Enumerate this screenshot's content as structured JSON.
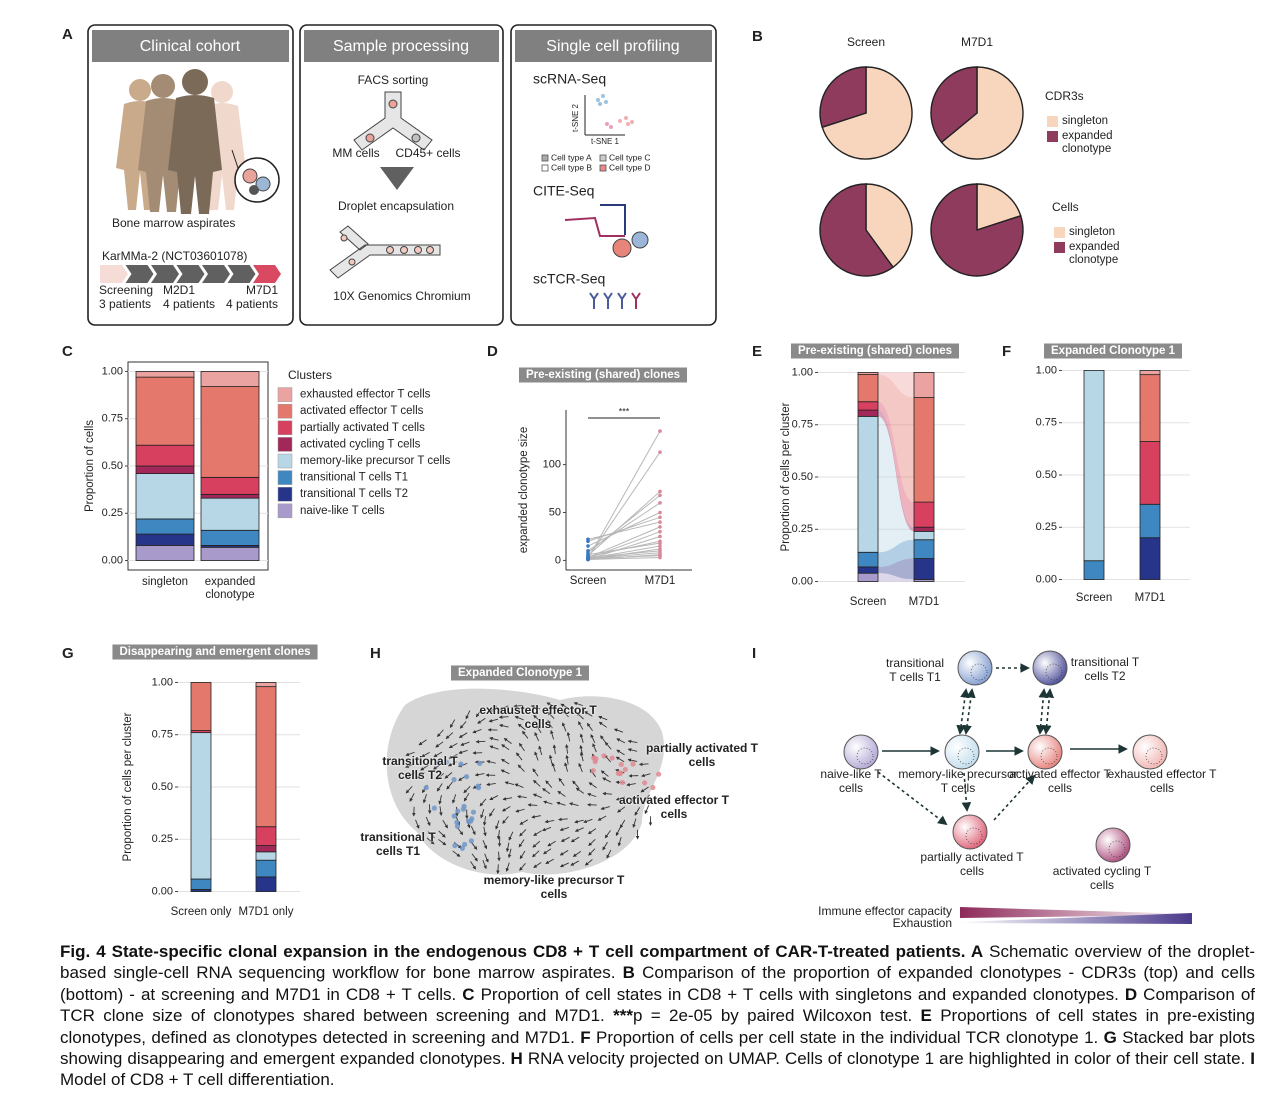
{
  "panel_labels": [
    "A",
    "B",
    "C",
    "D",
    "E",
    "F",
    "G",
    "H",
    "I"
  ],
  "panel_a": {
    "headers": [
      "Clinical cohort",
      "Sample processing",
      "Single cell profiling"
    ],
    "cohort": {
      "caption": "Bone marrow aspirates",
      "trial": "KarMMa-2 (NCT03601078)",
      "timepoints": [
        {
          "name": "Screening",
          "patients": "3 patients"
        },
        {
          "name": "M2D1",
          "patients": "4 patients"
        },
        {
          "name": "M7D1",
          "patients": "4 patients"
        }
      ]
    },
    "processing": {
      "step1": "FACS sorting",
      "left": "MM cells",
      "right": "CD45+ cells",
      "step2": "Droplet encapsulation",
      "step3": "10X Genomics Chromium"
    },
    "profiling": {
      "methods": [
        "scRNA-Seq",
        "CITE-Seq",
        "scTCR-Seq"
      ],
      "axis_y": "t-SNE 2",
      "axis_x": "t-SNE 1",
      "cell_types": [
        "Cell type A",
        "Cell type C",
        "Cell type B",
        "Cell type D"
      ]
    }
  },
  "chart_data": [
    {
      "type": "pie",
      "title": "CDR3s",
      "labels": [
        "singleton",
        "expanded clonotype"
      ],
      "colors": [
        "#f8d5bd",
        "#8e3b5e"
      ],
      "pies": [
        {
          "name": "Screen",
          "values": [
            70,
            30
          ]
        },
        {
          "name": "M7D1",
          "values": [
            64,
            36
          ]
        }
      ]
    },
    {
      "type": "pie",
      "title": "Cells",
      "labels": [
        "singleton",
        "expanded clonotype"
      ],
      "colors": [
        "#f8d5bd",
        "#8e3b5e"
      ],
      "pies": [
        {
          "values": [
            40,
            60
          ]
        },
        {
          "values": [
            20,
            80
          ]
        }
      ]
    },
    {
      "type": "bar",
      "stacked": true,
      "categories": [
        "singleton",
        "expanded clonotype"
      ],
      "y_label": "Proportion of cells",
      "legend_title": "Clusters",
      "series": [
        {
          "name": "exhausted effector T cells",
          "color": "#eaa3a0",
          "values": [
            0.03,
            0.08
          ]
        },
        {
          "name": "activated effector T cells",
          "color": "#e4786d",
          "values": [
            0.36,
            0.48
          ]
        },
        {
          "name": "partially activated T cells",
          "color": "#d8405f",
          "values": [
            0.11,
            0.09
          ]
        },
        {
          "name": "activated cycling T cells",
          "color": "#a3285a",
          "values": [
            0.04,
            0.02
          ]
        },
        {
          "name": "memory-like precursor T cells",
          "color": "#b8d7e6",
          "values": [
            0.24,
            0.17
          ]
        },
        {
          "name": "transitional T cells T1",
          "color": "#3f87c0",
          "values": [
            0.08,
            0.08
          ]
        },
        {
          "name": "transitional T cells T2",
          "color": "#26358a",
          "values": [
            0.06,
            0.01
          ]
        },
        {
          "name": "naive-like T cells",
          "color": "#a89bcb",
          "values": [
            0.08,
            0.07
          ]
        }
      ],
      "ylim": [
        -0.05,
        1.05
      ],
      "yticks": [
        {
          "value": 0,
          "label": "0.00"
        },
        0.25,
        {
          "value": 0.5,
          "label": "0.50"
        },
        0.75,
        {
          "value": 1,
          "label": "1.00"
        }
      ],
      "grid": true
    },
    {
      "type": "line",
      "title": "Pre-existing (shared) clones",
      "categories": [
        "Screen",
        "M7D1"
      ],
      "y_label": "expanded clonotype size",
      "annotation": "***",
      "line_color": "#b8b8b8",
      "point_colors": [
        "#3a78c2",
        "#d9889a"
      ],
      "series": [
        {
          "values": [
            2,
            135
          ]
        },
        {
          "values": [
            3,
            113
          ]
        },
        {
          "values": [
            5,
            72
          ]
        },
        {
          "values": [
            8,
            68
          ]
        },
        {
          "values": [
            10,
            60
          ]
        },
        {
          "values": [
            15,
            50
          ]
        },
        {
          "values": [
            20,
            45
          ]
        },
        {
          "values": [
            22,
            40
          ]
        },
        {
          "values": [
            3,
            35
          ]
        },
        {
          "values": [
            2,
            30
          ]
        },
        {
          "values": [
            1,
            25
          ]
        },
        {
          "values": [
            4,
            20
          ]
        },
        {
          "values": [
            6,
            18
          ]
        },
        {
          "values": [
            2,
            15
          ]
        },
        {
          "values": [
            1,
            12
          ]
        },
        {
          "values": [
            3,
            10
          ]
        },
        {
          "values": [
            2,
            8
          ]
        },
        {
          "values": [
            1,
            6
          ]
        },
        {
          "values": [
            2,
            5
          ]
        },
        {
          "values": [
            1,
            3
          ]
        }
      ],
      "ylim": [
        -10,
        157
      ],
      "yticks": [
        0,
        50,
        100
      ]
    },
    {
      "type": "bar",
      "stacked": true,
      "flows": true,
      "title": "Pre-existing (shared) clones",
      "categories": [
        "Screen",
        "M7D1"
      ],
      "y_label": "Proportion of cells per cluster",
      "series": [
        {
          "color": "#eaa3a0",
          "values": [
            0.01,
            0.12
          ]
        },
        {
          "color": "#e4786d",
          "values": [
            0.13,
            0.5
          ]
        },
        {
          "color": "#d8405f",
          "values": [
            0.04,
            0.12
          ]
        },
        {
          "color": "#a3285a",
          "values": [
            0.03,
            0.02
          ]
        },
        {
          "color": "#b8d7e6",
          "values": [
            0.65,
            0.04
          ]
        },
        {
          "color": "#3f87c0",
          "values": [
            0.07,
            0.09
          ]
        },
        {
          "color": "#26358a",
          "values": [
            0.03,
            0.1
          ]
        },
        {
          "color": "#a89bcb",
          "values": [
            0.04,
            0.01
          ]
        }
      ],
      "ylim": [
        -0.05,
        1.05
      ],
      "yticks": [
        {
          "value": 0,
          "label": "0.00"
        },
        0.25,
        {
          "value": 0.5,
          "label": "0.50"
        },
        0.75,
        {
          "value": 1,
          "label": "1.00"
        }
      ],
      "grid": true
    },
    {
      "type": "bar",
      "stacked": true,
      "title": "Expanded Clonotype 1",
      "categories": [
        "Screen",
        "M7D1"
      ],
      "series": [
        {
          "color": "#eaa3a0",
          "values": [
            0,
            0.02
          ]
        },
        {
          "color": "#e4786d",
          "values": [
            0,
            0.32
          ]
        },
        {
          "color": "#d8405f",
          "values": [
            0,
            0.3
          ]
        },
        {
          "color": "#a3285a",
          "values": [
            0,
            0
          ]
        },
        {
          "color": "#b8d7e6",
          "values": [
            0.91,
            0
          ]
        },
        {
          "color": "#3f87c0",
          "values": [
            0.09,
            0.16
          ]
        },
        {
          "color": "#26358a",
          "values": [
            0,
            0.2
          ]
        },
        {
          "color": "#a89bcb",
          "values": [
            0,
            0
          ]
        }
      ],
      "ylim": [
        -0.05,
        1.05
      ],
      "yticks": [
        {
          "value": 0,
          "label": "0.00"
        },
        0.25,
        {
          "value": 0.5,
          "label": "0.50"
        },
        0.75,
        {
          "value": 1,
          "label": "1.00"
        }
      ],
      "grid": true
    },
    {
      "type": "bar",
      "stacked": true,
      "title": "Disappearing and emergent clones",
      "categories": [
        "Screen only",
        "M7D1 only"
      ],
      "y_label": "Proportion of cells per cluster",
      "series": [
        {
          "color": "#eaa3a0",
          "values": [
            0,
            0.02
          ]
        },
        {
          "color": "#e4786d",
          "values": [
            0.23,
            0.67
          ]
        },
        {
          "color": "#d8405f",
          "values": [
            0.01,
            0.09
          ]
        },
        {
          "color": "#a3285a",
          "values": [
            0,
            0.03
          ]
        },
        {
          "color": "#b8d7e6",
          "values": [
            0.7,
            0.04
          ]
        },
        {
          "color": "#3f87c0",
          "values": [
            0.05,
            0.08
          ]
        },
        {
          "color": "#26358a",
          "values": [
            0.01,
            0.07
          ]
        },
        {
          "color": "#a89bcb",
          "values": [
            0,
            0
          ]
        }
      ],
      "ylim": [
        -0.05,
        1.05
      ],
      "yticks": [
        {
          "value": 0,
          "label": "0.00"
        },
        0.25,
        {
          "value": 0.5,
          "label": "0.50"
        },
        0.75,
        {
          "value": 1,
          "label": "1.00"
        }
      ],
      "grid": true
    }
  ],
  "panel_h": {
    "title": "Expanded Clonotype 1",
    "labels": [
      "exhausted effector T cells",
      "transitional T cells T2",
      "partially activated T cells",
      "activated effector T cells",
      "transitional T cells T1",
      "memory-like precursor T cells"
    ]
  },
  "panel_i": {
    "nodes": [
      "transitional T cells T1",
      "transitional T cells T2",
      "naive-like T cells",
      "memory-like precursor T cells",
      "activated effector T cells",
      "exhausted effector T cells",
      "partially activated T cells",
      "activated cycling T cells"
    ],
    "scales": [
      "Immune effector capacity",
      "Exhaustion"
    ]
  },
  "caption": [
    {
      "text": "Fig. 4   State-specific clonal expansion in the endogenous CD8 + T cell compartment of CAR-T-treated patients.",
      "bold": true
    },
    {
      "text": " A",
      "bold": true
    },
    {
      "text": " Schematic overview of the droplet-based single-cell RNA sequencing workflow for bone marrow aspirates.",
      "bold": false
    },
    {
      "text": " B",
      "bold": true
    },
    {
      "text": " Comparison of the proportion of expanded clonotypes - CDR3s (top) and cells (bottom) - at screening and M7D1 in CD8 + T cells.",
      "bold": false
    },
    {
      "text": " C",
      "bold": true
    },
    {
      "text": " Proportion of cell states in CD8 + T cells with singletons and expanded clonotypes.",
      "bold": false
    },
    {
      "text": " D",
      "bold": true
    },
    {
      "text": " Comparison of TCR clone size of clonotypes shared between screening and M7D1.",
      "bold": false
    },
    {
      "text": " ***",
      "bold": true
    },
    {
      "text": "p = 2e-05 by paired Wilcoxon test.",
      "bold": false
    },
    {
      "text": " E",
      "bold": true
    },
    {
      "text": " Proportions of cell states in pre-existing clonotypes, defined as clonotypes detected in screening and M7D1.",
      "bold": false
    },
    {
      "text": " F",
      "bold": true
    },
    {
      "text": " Proportion of cells per cell state in the individual TCR clonotype 1.",
      "bold": false
    },
    {
      "text": " G",
      "bold": true
    },
    {
      "text": " Stacked bar plots showing disappearing and emergent expanded clonotypes.",
      "bold": false
    },
    {
      "text": " H",
      "bold": true
    },
    {
      "text": " RNA velocity projected on UMAP. Cells of clonotype 1 are highlighted in color of their cell state.",
      "bold": false
    },
    {
      "text": " I",
      "bold": true
    },
    {
      "text": " Model of CD8 + T cell differentiation.",
      "bold": false
    }
  ]
}
